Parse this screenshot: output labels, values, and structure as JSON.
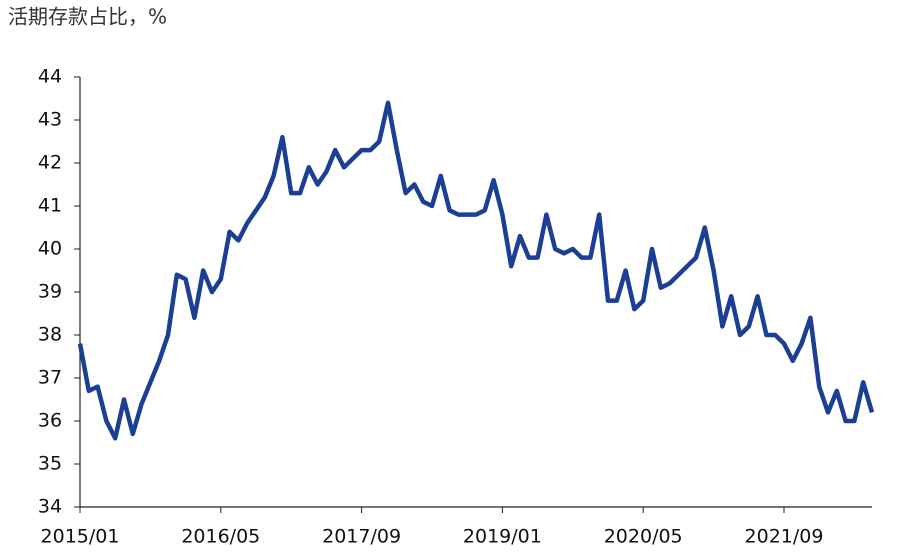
{
  "chart_data": {
    "type": "line",
    "title": "活期存款占比，%",
    "categories": [
      "2015/01",
      null,
      null,
      null,
      null,
      null,
      null,
      null,
      null,
      null,
      null,
      null,
      null,
      null,
      null,
      null,
      "2016/05",
      null,
      null,
      null,
      null,
      null,
      null,
      null,
      null,
      null,
      null,
      null,
      null,
      null,
      null,
      null,
      "2017/09",
      null,
      null,
      null,
      null,
      null,
      null,
      null,
      null,
      null,
      null,
      null,
      null,
      null,
      null,
      null,
      "2019/01",
      null,
      null,
      null,
      null,
      null,
      null,
      null,
      null,
      null,
      null,
      null,
      null,
      null,
      null,
      null,
      "2020/05",
      null,
      null,
      null,
      null,
      null,
      null,
      null,
      null,
      null,
      null,
      null,
      null,
      null,
      null,
      null,
      "2021/09",
      null,
      null,
      null,
      null,
      null,
      null,
      null,
      null,
      null,
      null
    ],
    "series": [
      {
        "color": "#1a3f94",
        "values": [
          37.8,
          36.7,
          36.8,
          36.0,
          35.6,
          36.5,
          35.7,
          36.4,
          36.9,
          37.4,
          38.0,
          39.4,
          39.3,
          38.4,
          39.5,
          39.0,
          39.3,
          40.4,
          40.2,
          40.6,
          40.9,
          41.2,
          41.7,
          42.6,
          41.3,
          41.3,
          41.9,
          41.5,
          41.8,
          42.3,
          41.9,
          42.1,
          42.3,
          42.3,
          42.5,
          43.4,
          42.3,
          41.3,
          41.5,
          41.1,
          41.0,
          41.7,
          40.9,
          40.8,
          40.8,
          40.8,
          40.9,
          41.6,
          40.8,
          39.6,
          40.3,
          39.8,
          39.8,
          40.8,
          40.0,
          39.9,
          40.0,
          39.8,
          39.8,
          40.8,
          38.8,
          38.8,
          39.5,
          38.6,
          38.8,
          40.0,
          39.1,
          39.2,
          39.4,
          39.6,
          39.8,
          40.5,
          39.5,
          38.2,
          38.9,
          38.0,
          38.2,
          38.9,
          38.0,
          38.0,
          37.8,
          37.4,
          37.8,
          38.4,
          36.8,
          36.2,
          36.7,
          36.0,
          36.0,
          36.9,
          36.2
        ]
      }
    ],
    "ylim": [
      34,
      44
    ],
    "yticks": [
      34,
      35,
      36,
      37,
      38,
      39,
      40,
      41,
      42,
      43,
      44
    ]
  }
}
